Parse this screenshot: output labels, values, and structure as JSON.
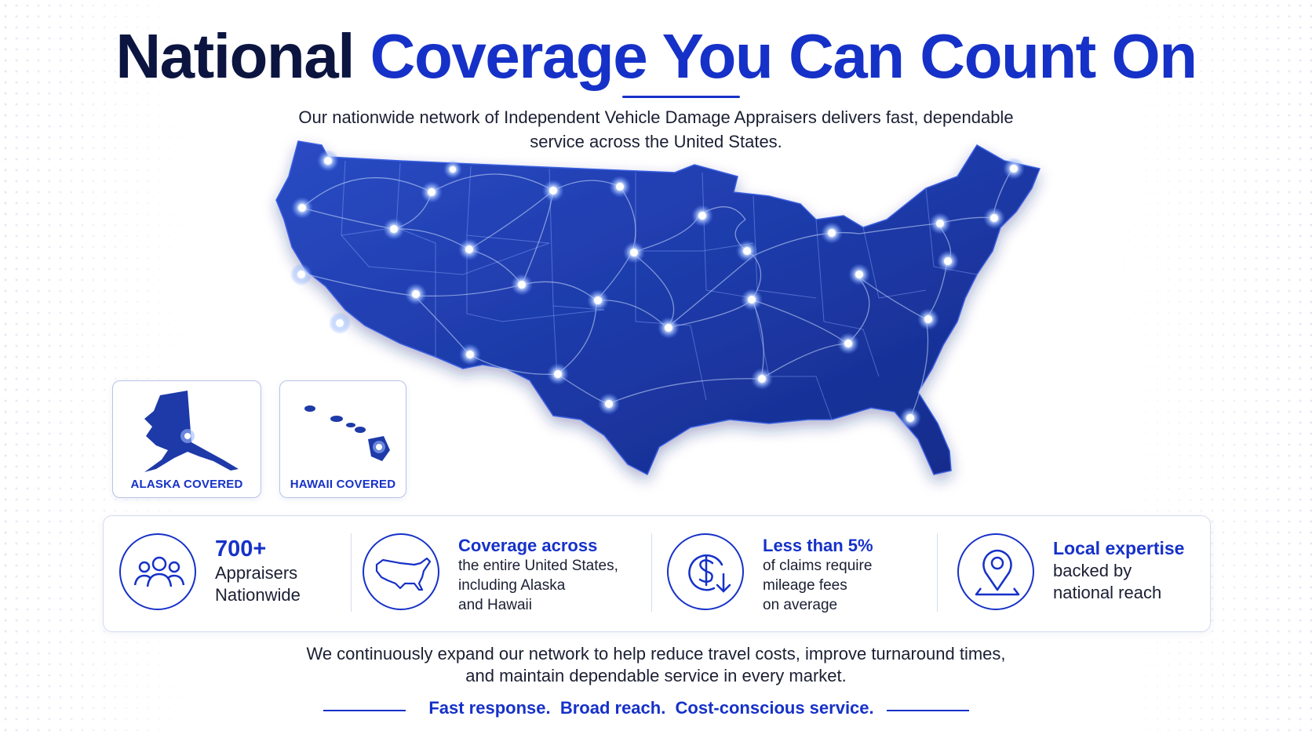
{
  "header": {
    "title_part1": "National",
    "title_part2": "Coverage You Can Count On",
    "subtitle_line1": "Our nationwide network of Independent Vehicle Damage Appraisers delivers fast, dependable",
    "subtitle_line2": "service across the United States."
  },
  "insets": {
    "alaska_label": "ALASKA COVERED",
    "hawaii_label": "HAWAII COVERED"
  },
  "stats": [
    {
      "head": "700+",
      "lines": [
        "Appraisers",
        "Nationwide"
      ],
      "icon": "people-icon"
    },
    {
      "head": "Coverage across",
      "lines": [
        "the entire United States,",
        "including Alaska",
        "and Hawaii"
      ],
      "icon": "us-map-icon"
    },
    {
      "head": "Less than 5%",
      "lines": [
        "of claims require",
        "mileage fees",
        "on average"
      ],
      "icon": "dollar-down-icon"
    },
    {
      "head": "Local expertise",
      "lines": [
        "backed by",
        "national reach"
      ],
      "icon": "location-pin-icon"
    }
  ],
  "footer": {
    "line1": "We continuously expand our network to help reduce travel costs, improve turnaround times,",
    "line2": "and maintain dependable service in every market.",
    "tagline": "Fast response.  Broad reach.  Cost-conscious service."
  },
  "colors": {
    "brand_blue": "#1631c8",
    "navy": "#0b1540",
    "map_blue": "#1d3aa8"
  }
}
